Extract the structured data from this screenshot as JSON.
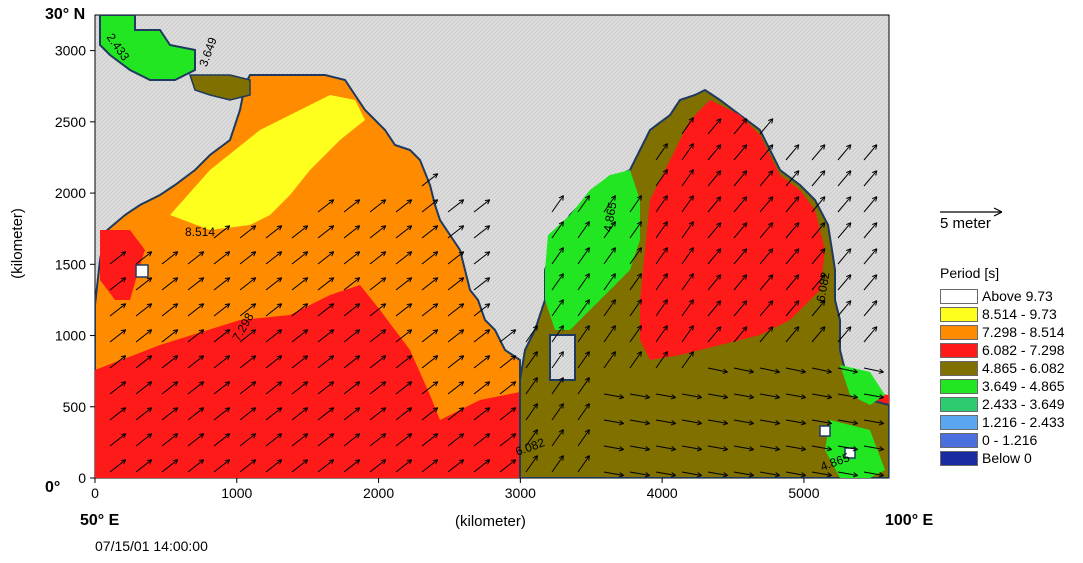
{
  "corner_labels": {
    "top_left": "30° N",
    "bottom_left": "0°",
    "x_left": "50° E",
    "x_right": "100° E"
  },
  "axis": {
    "x_label": "(kilometer)",
    "y_label": "(kilometer)",
    "x_ticks": [
      "0",
      "1000",
      "2000",
      "3000",
      "4000",
      "5000"
    ],
    "y_ticks": [
      "3000",
      "2500",
      "2000",
      "1500",
      "1000",
      "500",
      "0"
    ]
  },
  "timestamp": "07/15/01 14:00:00",
  "vector_scale": {
    "label": "5 meter"
  },
  "legend": {
    "title": "Period [s]",
    "items": [
      {
        "label": "Above  9.73",
        "color": "#ffffff"
      },
      {
        "label": "8.514 -  9.73",
        "color": "#ffff1e"
      },
      {
        "label": "7.298 - 8.514",
        "color": "#ff8c00"
      },
      {
        "label": "6.082 - 7.298",
        "color": "#ff1a1a"
      },
      {
        "label": "4.865 - 6.082",
        "color": "#7f7000"
      },
      {
        "label": "3.649 - 4.865",
        "color": "#22e622"
      },
      {
        "label": "2.433 - 3.649",
        "color": "#2ecc71"
      },
      {
        "label": "1.216 - 2.433",
        "color": "#5aa6f0"
      },
      {
        "label": "0 - 1.216",
        "color": "#4a70e0"
      },
      {
        "label": "Below      0",
        "color": "#1a2aa0"
      }
    ]
  },
  "contour_labels": [
    "2.433",
    "3.649",
    "8.514",
    "6.082",
    "4.865",
    "7.298"
  ],
  "colors": {
    "land": "#d9d9d9",
    "coast": "#1f3a5f",
    "arrow": "#000000"
  }
}
